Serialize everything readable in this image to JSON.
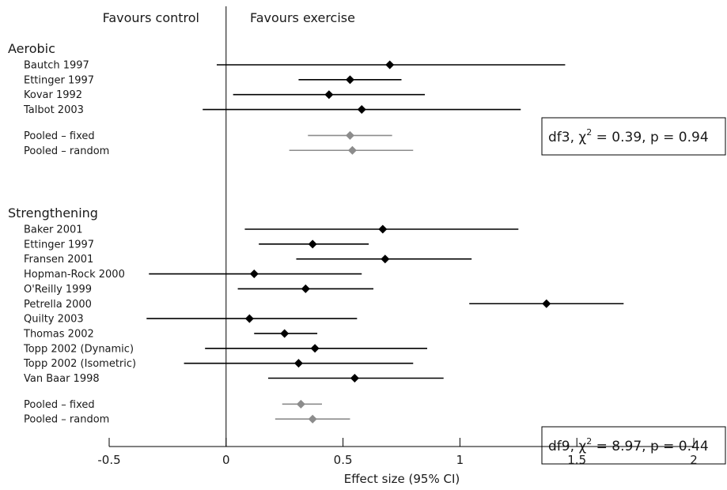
{
  "chart_data": {
    "type": "forest",
    "header_left": "Favours control",
    "header_right": "Favours exercise",
    "xlabel": "Effect size (95% CI)",
    "xlim": [
      -0.5,
      2
    ],
    "xticks": [
      "-0.5",
      "0",
      "0.5",
      "1",
      "1.5",
      "2"
    ],
    "xtick_values": [
      -0.5,
      0,
      0.5,
      1,
      1.5,
      2
    ],
    "colors": {
      "study": "#000000",
      "pooled": "#8c8c8c",
      "text": "#1a1a1a"
    },
    "groups": [
      {
        "name": "Aerobic",
        "studies": [
          {
            "label": "Bautch 1997",
            "est": 0.7,
            "lo": -0.04,
            "hi": 1.45
          },
          {
            "label": "Ettinger 1997",
            "est": 0.53,
            "lo": 0.31,
            "hi": 0.75
          },
          {
            "label": "Kovar 1992",
            "est": 0.44,
            "lo": 0.03,
            "hi": 0.85
          },
          {
            "label": "Talbot 2003",
            "est": 0.58,
            "lo": -0.1,
            "hi": 1.26
          }
        ],
        "pooled": [
          {
            "label": "Pooled – fixed",
            "est": 0.53,
            "lo": 0.35,
            "hi": 0.71
          },
          {
            "label": "Pooled – random",
            "est": 0.54,
            "lo": 0.27,
            "hi": 0.8
          }
        ],
        "stat": {
          "df": "df3,",
          "chi": "χ",
          "sup": "2",
          "rest": "= 0.39, p = 0.94"
        }
      },
      {
        "name": "Strengthening",
        "studies": [
          {
            "label": "Baker 2001",
            "est": 0.67,
            "lo": 0.08,
            "hi": 1.25
          },
          {
            "label": "Ettinger 1997",
            "est": 0.37,
            "lo": 0.14,
            "hi": 0.61
          },
          {
            "label": "Fransen 2001",
            "est": 0.68,
            "lo": 0.3,
            "hi": 1.05
          },
          {
            "label": "Hopman-Rock 2000",
            "est": 0.12,
            "lo": -0.33,
            "hi": 0.58
          },
          {
            "label": "O'Reilly 1999",
            "est": 0.34,
            "lo": 0.05,
            "hi": 0.63
          },
          {
            "label": "Petrella 2000",
            "est": 1.37,
            "lo": 1.04,
            "hi": 1.7
          },
          {
            "label": "Quilty 2003",
            "est": 0.1,
            "lo": -0.34,
            "hi": 0.56
          },
          {
            "label": "Thomas 2002",
            "est": 0.25,
            "lo": 0.12,
            "hi": 0.39
          },
          {
            "label": "Topp 2002 (Dynamic)",
            "est": 0.38,
            "lo": -0.09,
            "hi": 0.86
          },
          {
            "label": "Topp 2002 (Isometric)",
            "est": 0.31,
            "lo": -0.18,
            "hi": 0.8
          },
          {
            "label": "Van Baar 1998",
            "est": 0.55,
            "lo": 0.18,
            "hi": 0.93
          }
        ],
        "pooled": [
          {
            "label": "Pooled – fixed",
            "est": 0.32,
            "lo": 0.24,
            "hi": 0.41
          },
          {
            "label": "Pooled – random",
            "est": 0.37,
            "lo": 0.21,
            "hi": 0.53
          }
        ],
        "stat": {
          "df": "df9,",
          "chi": "χ",
          "sup": "2",
          "rest": "= 8.97, p = 0.44"
        }
      }
    ]
  }
}
